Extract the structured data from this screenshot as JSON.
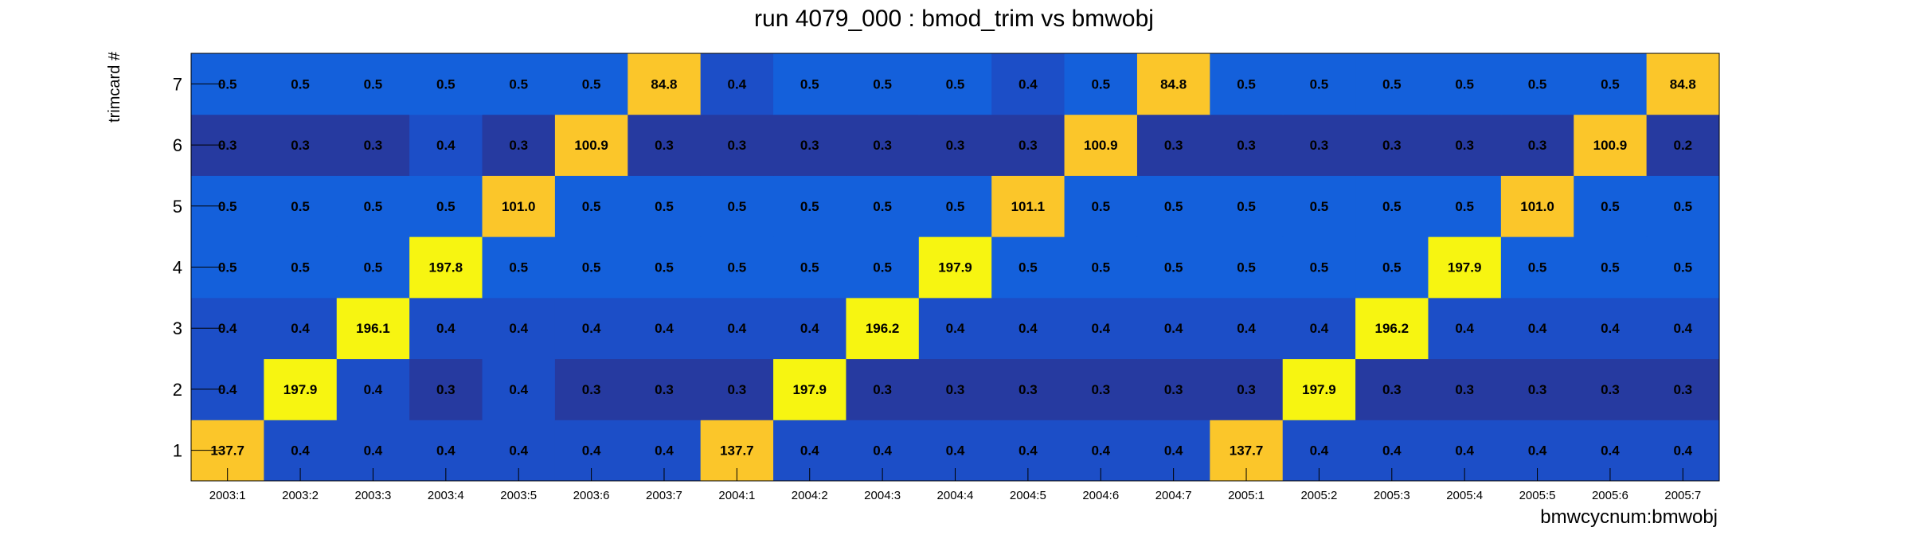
{
  "chart_data": {
    "type": "heatmap",
    "title": "run 4079_000 : bmod_trim vs bmwobj",
    "xlabel": "bmwcycnum:bmwobj",
    "ylabel": "trimcard #",
    "x_categories": [
      "2003:1",
      "2003:2",
      "2003:3",
      "2003:4",
      "2003:5",
      "2003:6",
      "2003:7",
      "2004:1",
      "2004:2",
      "2004:3",
      "2004:4",
      "2004:5",
      "2004:6",
      "2004:7",
      "2005:1",
      "2005:2",
      "2005:3",
      "2005:4",
      "2005:5",
      "2005:6",
      "2005:7"
    ],
    "y_categories": [
      "1",
      "2",
      "3",
      "4",
      "5",
      "6",
      "7"
    ],
    "values": [
      [
        "137.7",
        "0.4",
        "0.4",
        "0.4",
        "0.4",
        "0.4",
        "0.4",
        "137.7",
        "0.4",
        "0.4",
        "0.4",
        "0.4",
        "0.4",
        "0.4",
        "137.7",
        "0.4",
        "0.4",
        "0.4",
        "0.4",
        "0.4",
        "0.4"
      ],
      [
        "0.4",
        "197.9",
        "0.4",
        "0.3",
        "0.4",
        "0.3",
        "0.3",
        "0.3",
        "197.9",
        "0.3",
        "0.3",
        "0.3",
        "0.3",
        "0.3",
        "0.3",
        "197.9",
        "0.3",
        "0.3",
        "0.3",
        "0.3",
        "0.3"
      ],
      [
        "0.4",
        "0.4",
        "196.1",
        "0.4",
        "0.4",
        "0.4",
        "0.4",
        "0.4",
        "0.4",
        "196.2",
        "0.4",
        "0.4",
        "0.4",
        "0.4",
        "0.4",
        "0.4",
        "196.2",
        "0.4",
        "0.4",
        "0.4",
        "0.4"
      ],
      [
        "0.5",
        "0.5",
        "0.5",
        "197.8",
        "0.5",
        "0.5",
        "0.5",
        "0.5",
        "0.5",
        "0.5",
        "197.9",
        "0.5",
        "0.5",
        "0.5",
        "0.5",
        "0.5",
        "0.5",
        "197.9",
        "0.5",
        "0.5",
        "0.5"
      ],
      [
        "0.5",
        "0.5",
        "0.5",
        "0.5",
        "101.0",
        "0.5",
        "0.5",
        "0.5",
        "0.5",
        "0.5",
        "0.5",
        "101.1",
        "0.5",
        "0.5",
        "0.5",
        "0.5",
        "0.5",
        "0.5",
        "101.0",
        "0.5",
        "0.5"
      ],
      [
        "0.3",
        "0.3",
        "0.3",
        "0.4",
        "0.3",
        "100.9",
        "0.3",
        "0.3",
        "0.3",
        "0.3",
        "0.3",
        "0.3",
        "100.9",
        "0.3",
        "0.3",
        "0.3",
        "0.3",
        "0.3",
        "0.3",
        "100.9",
        "0.2"
      ],
      [
        "0.5",
        "0.5",
        "0.5",
        "0.5",
        "0.5",
        "0.5",
        "84.8",
        "0.4",
        "0.5",
        "0.5",
        "0.5",
        "0.4",
        "0.5",
        "84.8",
        "0.5",
        "0.5",
        "0.5",
        "0.5",
        "0.5",
        "0.5",
        "84.8"
      ]
    ],
    "colors": {
      "very_low": "#263aa0",
      "low": "#1c4ec7",
      "mid_low": "#1460db",
      "orange": "#fbc62a",
      "yellow": "#f7f511"
    },
    "grid": false,
    "legend": "none"
  }
}
